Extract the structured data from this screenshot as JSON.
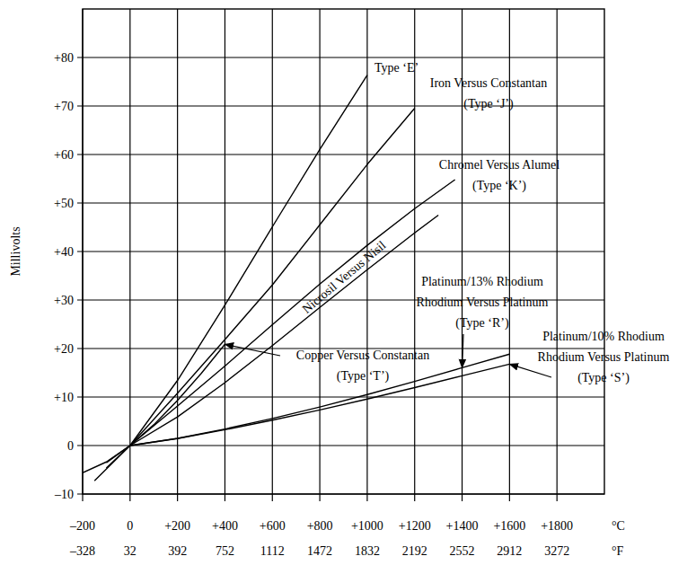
{
  "chart_data": {
    "type": "line",
    "ylabel": "Millivolts",
    "xlabel": "°C",
    "x2label": "°F",
    "xlim": [
      -200,
      2000
    ],
    "xticks": [
      {
        "value": -200,
        "label": "–200"
      },
      0,
      {
        "value": 200,
        "label": "+200"
      },
      {
        "value": 400,
        "label": "+400"
      },
      {
        "value": 600,
        "label": "+600"
      },
      {
        "value": 800,
        "label": "+800"
      },
      {
        "value": 1000,
        "label": "+1000"
      },
      {
        "value": 1200,
        "label": "+1200"
      },
      {
        "value": 1400,
        "label": "+1400"
      },
      {
        "value": 1600,
        "label": "+1600"
      },
      {
        "value": 1800,
        "label": "+1800"
      }
    ],
    "x2lim": [
      -328,
      3632
    ],
    "x2ticks": [
      {
        "value": -328,
        "label": "–328"
      },
      32,
      392,
      752,
      1112,
      1472,
      1832,
      2192,
      2552,
      2912,
      3272
    ],
    "ylim": [
      -10,
      90
    ],
    "yticks": [
      {
        "value": -10,
        "label": "–10"
      },
      0,
      {
        "value": 10,
        "label": "+10"
      },
      {
        "value": 20,
        "label": "+20"
      },
      {
        "value": 30,
        "label": "+30"
      },
      {
        "value": 40,
        "label": "+40"
      },
      {
        "value": 50,
        "label": "+50"
      },
      {
        "value": 60,
        "label": "+60"
      },
      {
        "value": 70,
        "label": "+70"
      },
      {
        "value": 80,
        "label": "+80"
      }
    ],
    "grid": true,
    "series": [
      {
        "name": "Type ‘E’",
        "color": "#000000",
        "x": [
          -150,
          0,
          200,
          400,
          600,
          800,
          1000
        ],
        "values": [
          -7.28,
          0,
          13.42,
          28.95,
          45.09,
          61.02,
          76.37
        ]
      },
      {
        "name": "Iron Versus Constantan\n(Type ‘J’)",
        "color": "#000000",
        "x": [
          -100,
          0,
          200,
          400,
          600,
          800,
          1000,
          1200
        ],
        "values": [
          -4.63,
          0,
          10.78,
          21.85,
          33.1,
          45.5,
          57.95,
          69.55
        ]
      },
      {
        "name": "Chromel Versus Alumel\n(Type ‘K’)",
        "color": "#000000",
        "x": [
          -100,
          0,
          200,
          400,
          600,
          800,
          1000,
          1200,
          1370
        ],
        "values": [
          -3.55,
          0,
          8.14,
          16.4,
          24.91,
          33.28,
          41.28,
          48.84,
          54.82
        ]
      },
      {
        "name": "Nicrosil Versus Nisil",
        "color": "#000000",
        "x": [
          0,
          200,
          400,
          600,
          800,
          1000,
          1200,
          1300
        ],
        "values": [
          0,
          5.91,
          12.97,
          20.61,
          28.46,
          36.26,
          43.85,
          47.51
        ]
      },
      {
        "name": "Copper Versus Constantan\n(Type ‘T’)",
        "color": "#000000",
        "x": [
          -200,
          -100,
          0,
          100,
          200,
          300,
          400
        ],
        "values": [
          -5.6,
          -3.38,
          0,
          4.28,
          9.29,
          14.86,
          20.87
        ]
      },
      {
        "name": "Platinum/13% Rhodium\nRhodium Versus Platinum\n(Type ‘R’)",
        "color": "#000000",
        "x": [
          0,
          200,
          400,
          600,
          800,
          1000,
          1200,
          1400,
          1600
        ],
        "values": [
          0,
          1.47,
          3.41,
          5.58,
          7.95,
          10.51,
          13.23,
          16.04,
          18.85
        ]
      },
      {
        "name": "Platinum/10% Rhodium\nRhodium Versus Platinum\n(Type ‘S’)",
        "color": "#000000",
        "x": [
          0,
          200,
          400,
          600,
          800,
          1000,
          1200,
          1400,
          1600
        ],
        "values": [
          0,
          1.44,
          3.26,
          5.24,
          7.35,
          9.59,
          11.95,
          14.37,
          16.78
        ]
      }
    ]
  }
}
